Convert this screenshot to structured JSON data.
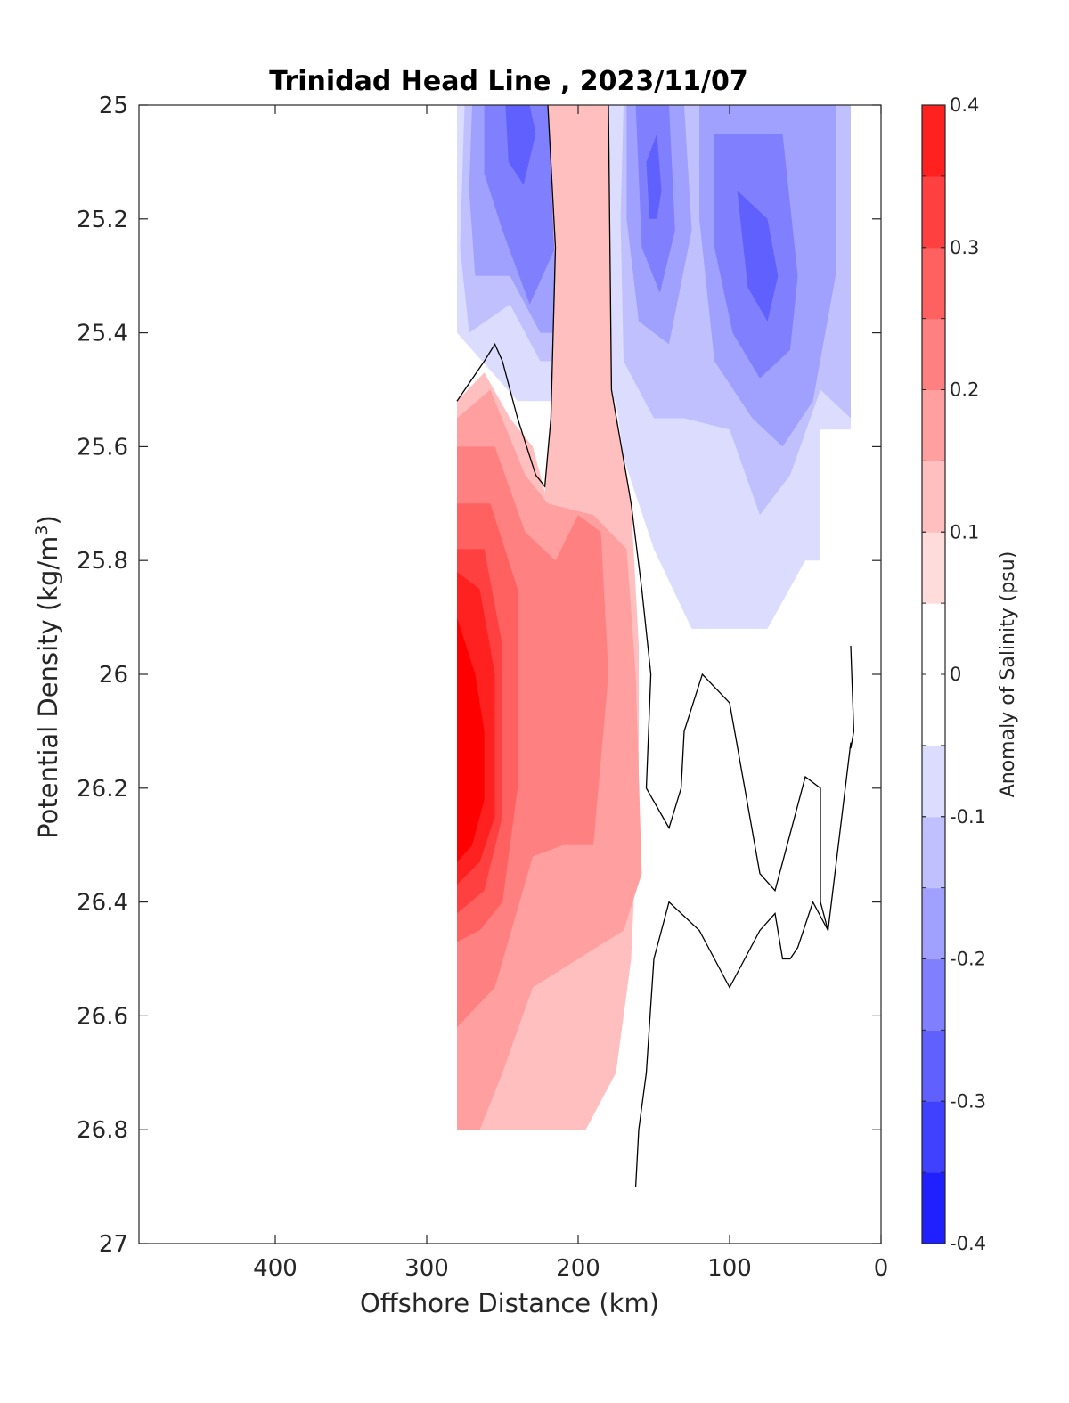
{
  "chart_data": {
    "type": "heatmap",
    "title": "Trinidad Head Line , 2023/11/07",
    "xlabel": "Offshore Distance (km)",
    "ylabel_main": "Potential Density (kg/m",
    "ylabel_sup": "3",
    "ylabel_tail": ")",
    "colorbar_label": "Anomaly of Salinity (psu)",
    "x_axis": {
      "reversed": true,
      "lim": [
        0,
        490
      ],
      "ticks": [
        400,
        300,
        200,
        100,
        0
      ],
      "tick_labels": [
        "400",
        "300",
        "200",
        "100",
        "0"
      ]
    },
    "y_axis": {
      "reversed": true,
      "lim": [
        25,
        27
      ],
      "ticks": [
        25,
        25.2,
        25.4,
        25.6,
        25.8,
        26,
        26.2,
        26.4,
        26.6,
        26.8,
        27
      ],
      "tick_labels": [
        "25",
        "25.2",
        "25.4",
        "25.6",
        "25.8",
        "26",
        "26.2",
        "26.4",
        "26.6",
        "26.8",
        "27"
      ]
    },
    "colorbar": {
      "lim": [
        -0.4,
        0.4
      ],
      "levels": [
        -0.4,
        -0.35,
        -0.3,
        -0.25,
        -0.2,
        -0.15,
        -0.1,
        -0.05,
        0.05,
        0.1,
        0.15,
        0.2,
        0.25,
        0.3,
        0.35,
        0.4
      ],
      "colors": [
        "#0000ff",
        "#2020ff",
        "#4040ff",
        "#6060ff",
        "#8080ff",
        "#a0a0ff",
        "#c0c0ff",
        "#dcdcff",
        "#ffffff",
        "#ffdcdc",
        "#ffbfbf",
        "#ff9f9f",
        "#ff8080",
        "#ff6060",
        "#ff4040",
        "#ff2020",
        "#ff0000"
      ],
      "ticks": [
        0.4,
        0.3,
        0.2,
        0.1,
        0,
        -0.1,
        -0.2,
        -0.3,
        -0.4
      ],
      "tick_labels": [
        "0.4",
        "0.3",
        "0.2",
        "0.1",
        "0",
        "-0.1",
        "-0.2",
        "-0.3",
        "-0.4"
      ]
    },
    "data_extent": {
      "x": [
        20,
        280
      ],
      "y": [
        25,
        26.8
      ]
    },
    "anomaly_regions": [
      {
        "level": -0.1,
        "points": [
          [
            280,
            25
          ],
          [
            20,
            25
          ],
          [
            20,
            25.57
          ],
          [
            40,
            25.57
          ],
          [
            40,
            25.8
          ],
          [
            50,
            25.8
          ],
          [
            75,
            25.92
          ],
          [
            100,
            25.92
          ],
          [
            125,
            25.92
          ],
          [
            150,
            25.78
          ],
          [
            170,
            25.62
          ],
          [
            175,
            25.52
          ],
          [
            190,
            25.52
          ],
          [
            200,
            25.52
          ],
          [
            215,
            25.52
          ],
          [
            240,
            25.52
          ],
          [
            280,
            25.4
          ]
        ]
      },
      {
        "level": -0.15,
        "points": [
          [
            275,
            25
          ],
          [
            205,
            25
          ],
          [
            205,
            25.45
          ],
          [
            225,
            25.45
          ],
          [
            245,
            25.35
          ],
          [
            272,
            25.4
          ],
          [
            278,
            25.25
          ]
        ]
      },
      {
        "level": -0.15,
        "points": [
          [
            170,
            25
          ],
          [
            20,
            25
          ],
          [
            20,
            25.55
          ],
          [
            40,
            25.5
          ],
          [
            60,
            25.65
          ],
          [
            80,
            25.72
          ],
          [
            100,
            25.57
          ],
          [
            130,
            25.55
          ],
          [
            150,
            25.55
          ],
          [
            170,
            25.45
          ],
          [
            172,
            25.2
          ]
        ]
      },
      {
        "level": -0.2,
        "points": [
          [
            270,
            25
          ],
          [
            212,
            25
          ],
          [
            210,
            25.4
          ],
          [
            225,
            25.4
          ],
          [
            245,
            25.3
          ],
          [
            268,
            25.3
          ],
          [
            272,
            25.15
          ]
        ]
      },
      {
        "level": -0.2,
        "points": [
          [
            168,
            25
          ],
          [
            130,
            25
          ],
          [
            125,
            25.22
          ],
          [
            140,
            25.42
          ],
          [
            160,
            25.38
          ],
          [
            168,
            25.2
          ]
        ]
      },
      {
        "level": -0.2,
        "points": [
          [
            120,
            25
          ],
          [
            30,
            25
          ],
          [
            30,
            25.3
          ],
          [
            45,
            25.52
          ],
          [
            65,
            25.6
          ],
          [
            85,
            25.55
          ],
          [
            110,
            25.45
          ],
          [
            120,
            25.2
          ]
        ]
      },
      {
        "level": -0.25,
        "points": [
          [
            262,
            25
          ],
          [
            218,
            25
          ],
          [
            215,
            25.25
          ],
          [
            232,
            25.35
          ],
          [
            250,
            25.22
          ],
          [
            262,
            25.12
          ]
        ]
      },
      {
        "level": -0.25,
        "points": [
          [
            162,
            25
          ],
          [
            140,
            25
          ],
          [
            136,
            25.22
          ],
          [
            146,
            25.33
          ],
          [
            158,
            25.25
          ]
        ]
      },
      {
        "level": -0.25,
        "points": [
          [
            110,
            25.05
          ],
          [
            65,
            25.05
          ],
          [
            55,
            25.3
          ],
          [
            60,
            25.43
          ],
          [
            80,
            25.48
          ],
          [
            98,
            25.4
          ],
          [
            110,
            25.25
          ]
        ]
      },
      {
        "level": -0.3,
        "points": [
          [
            248,
            25
          ],
          [
            232,
            25
          ],
          [
            228,
            25.05
          ],
          [
            236,
            25.14
          ],
          [
            246,
            25.1
          ]
        ]
      },
      {
        "level": -0.3,
        "points": [
          [
            155,
            25.1
          ],
          [
            148,
            25.05
          ],
          [
            145,
            25.15
          ],
          [
            148,
            25.2
          ],
          [
            153,
            25.2
          ]
        ]
      },
      {
        "level": -0.3,
        "points": [
          [
            95,
            25.15
          ],
          [
            75,
            25.2
          ],
          [
            68,
            25.3
          ],
          [
            75,
            25.38
          ],
          [
            88,
            25.32
          ]
        ]
      },
      {
        "level": 0.1,
        "points": [
          [
            220,
            25
          ],
          [
            180,
            25
          ],
          [
            178,
            25.5
          ],
          [
            165,
            25.7
          ],
          [
            160,
            25.95
          ],
          [
            160,
            26.2
          ],
          [
            165,
            26.5
          ],
          [
            175,
            26.7
          ],
          [
            195,
            26.8
          ],
          [
            280,
            26.8
          ],
          [
            280,
            25.52
          ],
          [
            262,
            25.47
          ],
          [
            245,
            25.55
          ],
          [
            230,
            25.6
          ],
          [
            222,
            25.68
          ],
          [
            218,
            25.55
          ],
          [
            215,
            25.3
          ]
        ]
      },
      {
        "level": 0.15,
        "points": [
          [
            280,
            25.55
          ],
          [
            258,
            25.5
          ],
          [
            235,
            25.65
          ],
          [
            220,
            25.7
          ],
          [
            190,
            25.72
          ],
          [
            168,
            25.78
          ],
          [
            162,
            26.0
          ],
          [
            158,
            26.35
          ],
          [
            170,
            26.45
          ],
          [
            200,
            26.5
          ],
          [
            230,
            26.55
          ],
          [
            250,
            26.7
          ],
          [
            265,
            26.8
          ],
          [
            280,
            26.8
          ]
        ]
      },
      {
        "level": 0.2,
        "points": [
          [
            280,
            25.6
          ],
          [
            255,
            25.6
          ],
          [
            235,
            25.75
          ],
          [
            215,
            25.8
          ],
          [
            200,
            25.72
          ],
          [
            185,
            25.75
          ],
          [
            180,
            26.0
          ],
          [
            190,
            26.3
          ],
          [
            210,
            26.3
          ],
          [
            230,
            26.32
          ],
          [
            255,
            26.55
          ],
          [
            280,
            26.62
          ]
        ]
      },
      {
        "level": 0.25,
        "points": [
          [
            280,
            25.7
          ],
          [
            258,
            25.7
          ],
          [
            240,
            25.85
          ],
          [
            240,
            26.2
          ],
          [
            250,
            26.4
          ],
          [
            265,
            26.45
          ],
          [
            280,
            26.47
          ]
        ]
      },
      {
        "level": 0.3,
        "points": [
          [
            280,
            25.78
          ],
          [
            262,
            25.78
          ],
          [
            250,
            25.95
          ],
          [
            250,
            26.25
          ],
          [
            262,
            26.38
          ],
          [
            280,
            26.42
          ]
        ]
      },
      {
        "level": 0.35,
        "points": [
          [
            280,
            25.82
          ],
          [
            265,
            25.85
          ],
          [
            255,
            26.0
          ],
          [
            255,
            26.25
          ],
          [
            265,
            26.33
          ],
          [
            280,
            26.37
          ]
        ]
      },
      {
        "level": 0.4,
        "points": [
          [
            280,
            25.9
          ],
          [
            268,
            26.0
          ],
          [
            262,
            26.1
          ],
          [
            262,
            26.22
          ],
          [
            270,
            26.3
          ],
          [
            280,
            26.33
          ]
        ]
      }
    ],
    "zero_contours": [
      [
        [
          280,
          25.52
        ],
        [
          262,
          25.45
        ],
        [
          255,
          25.42
        ],
        [
          250,
          25.45
        ],
        [
          240,
          25.55
        ],
        [
          228,
          25.65
        ],
        [
          222,
          25.67
        ],
        [
          218,
          25.55
        ],
        [
          215,
          25.25
        ],
        [
          220,
          25
        ]
      ],
      [
        [
          180,
          25
        ],
        [
          178,
          25.5
        ],
        [
          165,
          25.7
        ],
        [
          158,
          25.85
        ],
        [
          152,
          26.0
        ],
        [
          155,
          26.2
        ],
        [
          140,
          26.27
        ],
        [
          132,
          26.2
        ],
        [
          130,
          26.1
        ],
        [
          118,
          26.0
        ],
        [
          100,
          26.05
        ],
        [
          90,
          26.2
        ],
        [
          80,
          26.35
        ],
        [
          70,
          26.38
        ],
        [
          60,
          26.28
        ],
        [
          50,
          26.18
        ],
        [
          40,
          26.2
        ],
        [
          40,
          26.4
        ],
        [
          35,
          26.45
        ],
        [
          20,
          26.12
        ]
      ],
      [
        [
          20,
          25.95
        ],
        [
          18,
          26.1
        ],
        [
          20,
          26.13
        ]
      ],
      [
        [
          35,
          26.45
        ],
        [
          45,
          26.4
        ],
        [
          55,
          26.48
        ],
        [
          60,
          26.5
        ],
        [
          65,
          26.5
        ],
        [
          70,
          26.42
        ],
        [
          80,
          26.45
        ],
        [
          90,
          26.5
        ],
        [
          100,
          26.55
        ],
        [
          110,
          26.5
        ],
        [
          120,
          26.45
        ],
        [
          140,
          26.4
        ],
        [
          145,
          26.45
        ],
        [
          150,
          26.5
        ],
        [
          155,
          26.7
        ],
        [
          160,
          26.8
        ],
        [
          162,
          26.9
        ]
      ]
    ]
  }
}
